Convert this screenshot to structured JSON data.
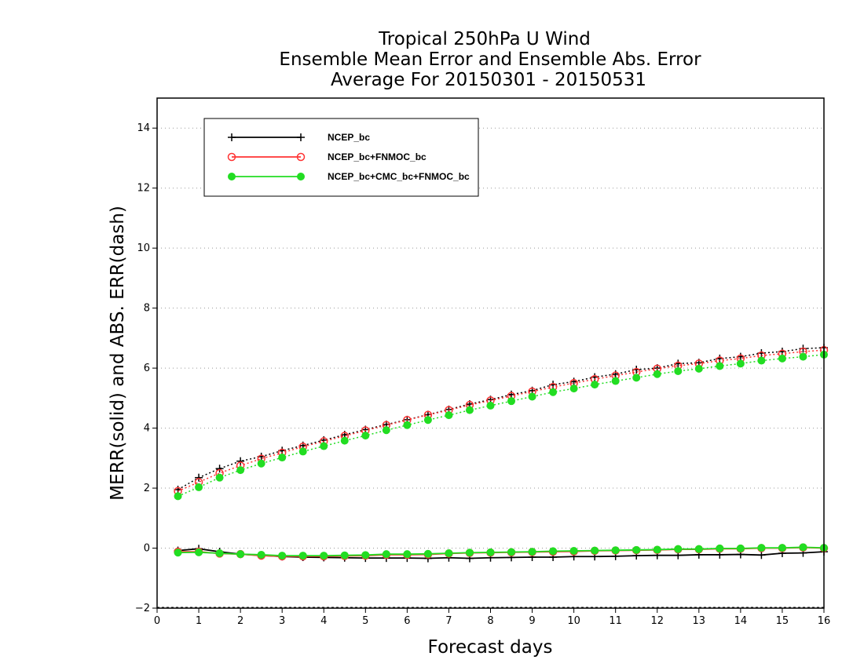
{
  "chart_data": {
    "type": "line",
    "title": [
      "Tropical 250hPa U Wind",
      "Ensemble Mean Error and Ensemble Abs. Error",
      "Average For 20150301 - 20150531"
    ],
    "xlabel": "Forecast days",
    "ylabel": "MERR(solid) and ABS. ERR(dash)",
    "xlim": [
      0,
      16
    ],
    "ylim": [
      -2,
      15
    ],
    "xticks": [
      0,
      1,
      2,
      3,
      4,
      5,
      6,
      7,
      8,
      9,
      10,
      11,
      12,
      13,
      14,
      15,
      16
    ],
    "yticks": [
      -2,
      0,
      2,
      4,
      6,
      8,
      10,
      12,
      14
    ],
    "grid": "dotted-horizontal",
    "legend_position": "top-left",
    "x": [
      0.5,
      1,
      1.5,
      2,
      2.5,
      3,
      3.5,
      4,
      4.5,
      5,
      5.5,
      6,
      6.5,
      7,
      7.5,
      8,
      8.5,
      9,
      9.5,
      10,
      10.5,
      11,
      11.5,
      12,
      12.5,
      13,
      13.5,
      14,
      14.5,
      15,
      15.5,
      16
    ],
    "series": [
      {
        "name": "NCEP_bc",
        "color": "#000000",
        "marker": "plus",
        "merr": [
          -0.08,
          -0.02,
          -0.12,
          -0.2,
          -0.24,
          -0.28,
          -0.3,
          -0.31,
          -0.32,
          -0.33,
          -0.33,
          -0.33,
          -0.34,
          -0.32,
          -0.34,
          -0.32,
          -0.31,
          -0.3,
          -0.3,
          -0.28,
          -0.28,
          -0.27,
          -0.25,
          -0.24,
          -0.24,
          -0.22,
          -0.22,
          -0.21,
          -0.23,
          -0.17,
          -0.16,
          -0.12
        ],
        "abs_err": [
          1.95,
          2.35,
          2.65,
          2.9,
          3.05,
          3.25,
          3.42,
          3.6,
          3.78,
          3.95,
          4.12,
          4.28,
          4.45,
          4.62,
          4.8,
          4.95,
          5.12,
          5.25,
          5.45,
          5.55,
          5.7,
          5.8,
          5.95,
          6.0,
          6.15,
          6.18,
          6.32,
          6.38,
          6.5,
          6.55,
          6.65,
          6.68
        ]
      },
      {
        "name": "NCEP_bc+FNMOC_bc",
        "color": "#ff3333",
        "marker": "open-circle",
        "merr": [
          -0.12,
          -0.12,
          -0.18,
          -0.2,
          -0.25,
          -0.27,
          -0.27,
          -0.27,
          -0.26,
          -0.25,
          -0.22,
          -0.22,
          -0.21,
          -0.18,
          -0.16,
          -0.15,
          -0.14,
          -0.13,
          -0.12,
          -0.11,
          -0.09,
          -0.08,
          -0.07,
          -0.06,
          -0.04,
          -0.04,
          -0.02,
          -0.02,
          0.0,
          0.0,
          0.02,
          0.0
        ],
        "abs_err": [
          1.9,
          2.2,
          2.5,
          2.75,
          2.98,
          3.18,
          3.38,
          3.56,
          3.74,
          3.92,
          4.1,
          4.27,
          4.44,
          4.6,
          4.77,
          4.92,
          5.07,
          5.22,
          5.37,
          5.5,
          5.63,
          5.75,
          5.87,
          5.98,
          6.08,
          6.15,
          6.25,
          6.32,
          6.42,
          6.48,
          6.55,
          6.6
        ]
      },
      {
        "name": "NCEP_bc+CMC_bc+FNMOC_bc",
        "color": "#22dd22",
        "marker": "filled-circle",
        "merr": [
          -0.15,
          -0.14,
          -0.17,
          -0.2,
          -0.22,
          -0.25,
          -0.25,
          -0.25,
          -0.24,
          -0.23,
          -0.2,
          -0.2,
          -0.19,
          -0.17,
          -0.15,
          -0.14,
          -0.13,
          -0.12,
          -0.1,
          -0.09,
          -0.08,
          -0.07,
          -0.06,
          -0.05,
          -0.03,
          -0.03,
          -0.01,
          -0.01,
          0.01,
          0.01,
          0.03,
          0.01
        ],
        "abs_err": [
          1.73,
          2.03,
          2.35,
          2.6,
          2.82,
          3.02,
          3.22,
          3.4,
          3.58,
          3.75,
          3.93,
          4.1,
          4.27,
          4.43,
          4.6,
          4.75,
          4.9,
          5.05,
          5.2,
          5.32,
          5.45,
          5.57,
          5.68,
          5.8,
          5.9,
          5.98,
          6.07,
          6.15,
          6.25,
          6.32,
          6.38,
          6.45
        ]
      }
    ]
  }
}
